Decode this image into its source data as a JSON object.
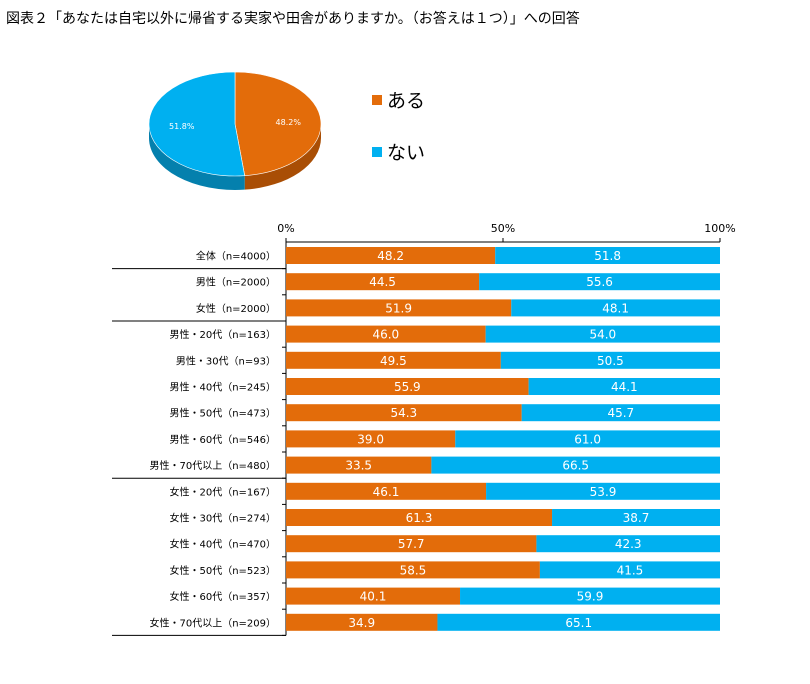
{
  "title": "図表２「あなたは自宅以外に帰省する実家や田舎がありますか。（お答えは１つ）」への回答",
  "colors": {
    "aru": "#e36c0a",
    "nai": "#00b0f0"
  },
  "pie": {
    "slices": [
      {
        "name": "ある",
        "value": 48.2,
        "label": "48.2%"
      },
      {
        "name": "ない",
        "value": 51.8,
        "label": "51.8%"
      }
    ]
  },
  "legend": [
    {
      "name": "ある"
    },
    {
      "name": "ない"
    }
  ],
  "chart_data": {
    "type": "bar",
    "orientation": "horizontal",
    "stacked": true,
    "xlim": [
      0,
      100
    ],
    "xticks": [
      "0%",
      "50%",
      "100%"
    ],
    "categories": [
      "全体（n=4000）",
      "男性（n=2000）",
      "女性（n=2000）",
      "男性・20代（n=163）",
      "男性・30代（n=93）",
      "男性・40代（n=245）",
      "男性・50代（n=473）",
      "男性・60代（n=546）",
      "男性・70代以上（n=480）",
      "女性・20代（n=167）",
      "女性・30代（n=274）",
      "女性・40代（n=470）",
      "女性・50代（n=523）",
      "女性・60代（n=357）",
      "女性・70代以上（n=209）"
    ],
    "series": [
      {
        "name": "ある",
        "values": [
          "48.2",
          "44.5",
          "51.9",
          "46.0",
          "49.5",
          "55.9",
          "54.3",
          "39.0",
          "33.5",
          "46.1",
          "61.3",
          "57.7",
          "58.5",
          "40.1",
          "34.9"
        ]
      },
      {
        "name": "ない",
        "values": [
          "51.8",
          "55.6",
          "48.1",
          "54.0",
          "50.5",
          "44.1",
          "45.7",
          "61.0",
          "66.5",
          "53.9",
          "38.7",
          "42.3",
          "41.5",
          "59.9",
          "65.1"
        ]
      }
    ],
    "group_separators_after": [
      0,
      2,
      8
    ]
  }
}
